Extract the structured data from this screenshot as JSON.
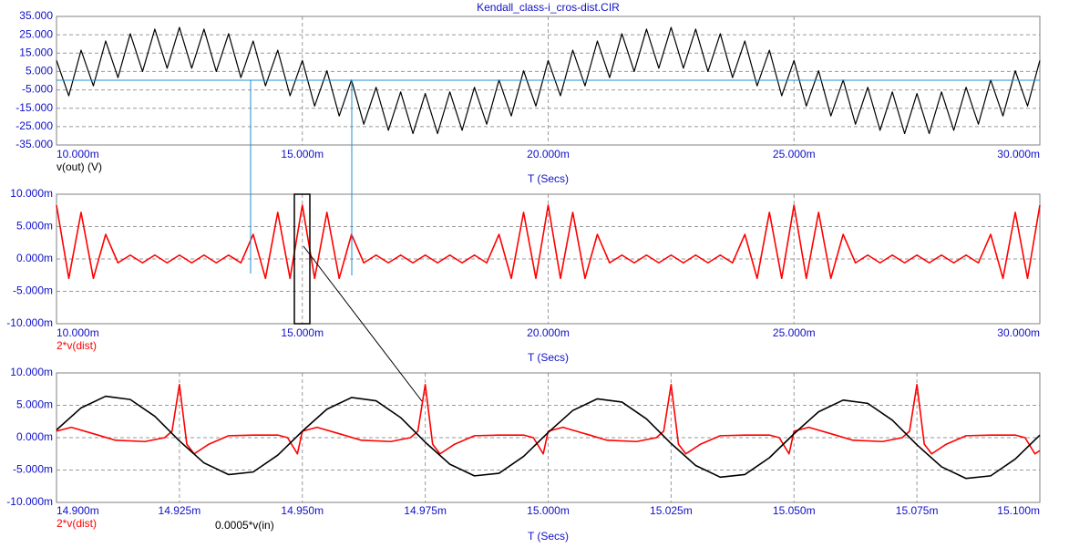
{
  "chart_data": [
    {
      "type": "line",
      "title": "Kendall_class-i_cros-dist.CIR",
      "x_label": "T (Secs)",
      "x": [
        10,
        10.25,
        10.5,
        10.75,
        11,
        11.25,
        11.5,
        11.75,
        12,
        12.25,
        12.5,
        12.75,
        13,
        13.25,
        13.5,
        13.75,
        14,
        14.25,
        14.5,
        14.75,
        15,
        15.25,
        15.5,
        15.75,
        16,
        16.25,
        16.5,
        16.75,
        17,
        17.25,
        17.5,
        17.75,
        18,
        18.25,
        18.5,
        18.75,
        19,
        19.25,
        19.5,
        19.75,
        20,
        20.25,
        20.5,
        20.75,
        21,
        21.25,
        21.5,
        21.75,
        22,
        22.25,
        22.5,
        22.75,
        23,
        23.25,
        23.5,
        23.75,
        24,
        24.25,
        24.5,
        24.75,
        25,
        25.25,
        25.5,
        25.75,
        26,
        26.25,
        26.5,
        26.75,
        27,
        27.25,
        27.5,
        27.75,
        28,
        28.25,
        28.5,
        28.75,
        29,
        29.25,
        29.5,
        29.75,
        30
      ],
      "series": [
        {
          "name": "v(out) (V)",
          "color": "#000000",
          "values": [
            11,
            -8.2,
            16.6,
            -2.8,
            21.6,
            1.7,
            25.6,
            5.0,
            28.1,
            6.8,
            29,
            6.8,
            28.1,
            5.0,
            25.6,
            1.7,
            21.6,
            -2.8,
            16.6,
            -8.2,
            11,
            -13.8,
            5.4,
            -19.2,
            0.4,
            -23.7,
            -3.6,
            -27,
            -6.1,
            -28.8,
            -7,
            -28.8,
            -6.1,
            -27,
            -3.6,
            -23.7,
            0.4,
            -19.2,
            5.4,
            -13.8,
            11,
            -8.2,
            16.6,
            -2.8,
            21.6,
            1.7,
            25.6,
            5.0,
            28.1,
            6.8,
            29,
            6.8,
            28.1,
            5.0,
            25.6,
            1.7,
            21.6,
            -2.8,
            16.6,
            -8.2,
            11,
            -13.8,
            5.4,
            -19.2,
            0.4,
            -23.7,
            -3.6,
            -27,
            -6.1,
            -28.8,
            -7,
            -28.8,
            -6.1,
            -27,
            -3.6,
            -23.7,
            0.4,
            -19.2,
            5.4,
            -13.8,
            11
          ]
        }
      ],
      "xlim": [
        10,
        30
      ],
      "ylim": [
        -35,
        35
      ],
      "xticks": [
        {
          "value": 10,
          "label": "10.000m"
        },
        {
          "value": 15,
          "label": "15.000m"
        },
        {
          "value": 20,
          "label": "20.000m"
        },
        {
          "value": 25,
          "label": "25.000m"
        },
        {
          "value": 30,
          "label": "30.000m"
        }
      ],
      "yticks": [
        {
          "value": 35,
          "label": "35.000"
        },
        {
          "value": 25,
          "label": "25.000"
        },
        {
          "value": 15,
          "label": "15.000"
        },
        {
          "value": 5,
          "label": "5.000"
        },
        {
          "value": -5,
          "label": "-5.000"
        },
        {
          "value": -15,
          "label": "-15.000"
        },
        {
          "value": -25,
          "label": "-25.000"
        },
        {
          "value": -35,
          "label": "-35.000"
        }
      ],
      "grid": true
    },
    {
      "type": "line",
      "x_label": "T (Secs)",
      "x": [
        10,
        10.25,
        10.5,
        10.75,
        11,
        11.25,
        11.5,
        11.75,
        12,
        12.25,
        12.5,
        12.75,
        13,
        13.25,
        13.5,
        13.75,
        14,
        14.25,
        14.5,
        14.75,
        15,
        15.25,
        15.5,
        15.75,
        16,
        16.25,
        16.5,
        16.75,
        17,
        17.25,
        17.5,
        17.75,
        18,
        18.25,
        18.5,
        18.75,
        19,
        19.25,
        19.5,
        19.75,
        20,
        20.25,
        20.5,
        20.75,
        21,
        21.25,
        21.5,
        21.75,
        22,
        22.25,
        22.5,
        22.75,
        23,
        23.25,
        23.5,
        23.75,
        24,
        24.25,
        24.5,
        24.75,
        25,
        25.25,
        25.5,
        25.75,
        26,
        26.25,
        26.5,
        26.75,
        27,
        27.25,
        27.5,
        27.75,
        28,
        28.25,
        28.5,
        28.75,
        29,
        29.25,
        29.5,
        29.75,
        30
      ],
      "series": [
        {
          "name": "2*v(dist)",
          "color": "#ff0000",
          "values": [
            8.3,
            -3,
            7.2,
            -3,
            3.8,
            -0.6,
            0.6,
            -0.6,
            0.6,
            -0.6,
            0.6,
            -0.6,
            0.6,
            -0.6,
            0.6,
            -0.6,
            3.8,
            -3,
            7.2,
            -3,
            8.3,
            -3,
            7.2,
            -3,
            3.8,
            -0.6,
            0.6,
            -0.6,
            0.6,
            -0.6,
            0.6,
            -0.6,
            0.6,
            -0.6,
            0.6,
            -0.6,
            3.8,
            -3,
            7.2,
            -3,
            8.3,
            -3,
            7.2,
            -3,
            3.8,
            -0.6,
            0.6,
            -0.6,
            0.6,
            -0.6,
            0.6,
            -0.6,
            0.6,
            -0.6,
            0.6,
            -0.6,
            3.8,
            -3,
            7.2,
            -3,
            8.3,
            -3,
            7.2,
            -3,
            3.8,
            -0.6,
            0.6,
            -0.6,
            0.6,
            -0.6,
            0.6,
            -0.6,
            0.6,
            -0.6,
            0.6,
            -0.6,
            3.8,
            -3,
            7.2,
            -3,
            8.3
          ]
        }
      ],
      "xlim": [
        10,
        30
      ],
      "ylim": [
        -10,
        10
      ],
      "xticks": [
        {
          "value": 10,
          "label": "10.000m"
        },
        {
          "value": 15,
          "label": "15.000m"
        },
        {
          "value": 20,
          "label": "20.000m"
        },
        {
          "value": 25,
          "label": "25.000m"
        },
        {
          "value": 30,
          "label": "30.000m"
        }
      ],
      "yticks": [
        {
          "value": 10,
          "label": "10.000m"
        },
        {
          "value": 5,
          "label": "5.000m"
        },
        {
          "value": 0,
          "label": "0.000m"
        },
        {
          "value": -5,
          "label": "-5.000m"
        },
        {
          "value": -10,
          "label": "-10.000m"
        }
      ],
      "grid": true
    },
    {
      "type": "line",
      "x_label": "T (Secs)",
      "series": [
        {
          "name": "2*v(dist)",
          "color": "#ff0000",
          "x": [
            14.9,
            14.903,
            14.908,
            14.912,
            14.918,
            14.922,
            14.9235,
            14.925,
            14.9265,
            14.928,
            14.931,
            14.935,
            14.94,
            14.945,
            14.947,
            14.949,
            14.95,
            14.953,
            14.958,
            14.962,
            14.968,
            14.972,
            14.9735,
            14.975,
            14.9765,
            14.978,
            14.981,
            14.985,
            14.99,
            14.995,
            14.997,
            14.999,
            15,
            15.003,
            15.008,
            15.012,
            15.018,
            15.022,
            15.0235,
            15.025,
            15.0265,
            15.028,
            15.031,
            15.035,
            15.04,
            15.045,
            15.047,
            15.049,
            15.05,
            15.053,
            15.058,
            15.062,
            15.068,
            15.072,
            15.0735,
            15.075,
            15.0765,
            15.078,
            15.081,
            15.085,
            15.09,
            15.095,
            15.097,
            15.099,
            15.1
          ],
          "values": [
            1.0,
            1.6,
            0.5,
            -0.4,
            -0.6,
            0.0,
            1.0,
            8.2,
            -1.0,
            -2.5,
            -1.0,
            0.3,
            0.4,
            0.4,
            0.0,
            -2.5,
            1.0,
            1.6,
            0.5,
            -0.4,
            -0.6,
            0.0,
            1.0,
            8.2,
            -1.0,
            -2.5,
            -1.0,
            0.3,
            0.4,
            0.4,
            0.0,
            -2.5,
            1.0,
            1.6,
            0.5,
            -0.4,
            -0.6,
            0.0,
            1.0,
            8.2,
            -1.0,
            -2.5,
            -1.0,
            0.3,
            0.4,
            0.4,
            0.0,
            -2.5,
            1.0,
            1.6,
            0.5,
            -0.4,
            -0.6,
            0.0,
            1.0,
            8.2,
            -1.0,
            -2.5,
            -1.0,
            0.3,
            0.4,
            0.4,
            0.0,
            -2.5,
            -2.0
          ]
        },
        {
          "name": "0.0005*v(in)",
          "color": "#000000",
          "x": [
            14.9,
            14.905,
            14.91,
            14.915,
            14.92,
            14.925,
            14.93,
            14.935,
            14.94,
            14.945,
            14.95,
            14.955,
            14.96,
            14.965,
            14.97,
            14.975,
            14.98,
            14.985,
            14.99,
            14.995,
            15,
            15.005,
            15.01,
            15.015,
            15.02,
            15.025,
            15.03,
            15.035,
            15.04,
            15.045,
            15.05,
            15.055,
            15.06,
            15.065,
            15.07,
            15.075,
            15.08,
            15.085,
            15.09,
            15.095,
            15.1
          ],
          "values": [
            1.2,
            4.6,
            6.4,
            5.9,
            3.3,
            -0.5,
            -3.9,
            -5.7,
            -5.3,
            -2.7,
            1.0,
            4.4,
            6.2,
            5.7,
            3.1,
            -0.7,
            -4.1,
            -5.9,
            -5.5,
            -2.9,
            0.8,
            4.2,
            6.0,
            5.5,
            2.9,
            -0.9,
            -4.3,
            -6.1,
            -5.7,
            -3.1,
            0.6,
            4.0,
            5.8,
            5.3,
            2.7,
            -1.1,
            -4.5,
            -6.3,
            -5.9,
            -3.3,
            0.4
          ]
        }
      ],
      "xlim": [
        14.9,
        15.1
      ],
      "ylim": [
        -10,
        10
      ],
      "xticks": [
        {
          "value": 14.9,
          "label": "14.900m"
        },
        {
          "value": 14.925,
          "label": "14.925m"
        },
        {
          "value": 14.95,
          "label": "14.950m"
        },
        {
          "value": 14.975,
          "label": "14.975m"
        },
        {
          "value": 15,
          "label": "15.000m"
        },
        {
          "value": 15.025,
          "label": "15.025m"
        },
        {
          "value": 15.05,
          "label": "15.050m"
        },
        {
          "value": 15.075,
          "label": "15.075m"
        },
        {
          "value": 15.1,
          "label": "15.100m"
        }
      ],
      "yticks": [
        {
          "value": 10,
          "label": "10.000m"
        },
        {
          "value": 5,
          "label": "5.000m"
        },
        {
          "value": 0,
          "label": "0.000m"
        },
        {
          "value": -5,
          "label": "-5.000m"
        },
        {
          "value": -10,
          "label": "-10.000m"
        }
      ],
      "grid": true
    }
  ]
}
